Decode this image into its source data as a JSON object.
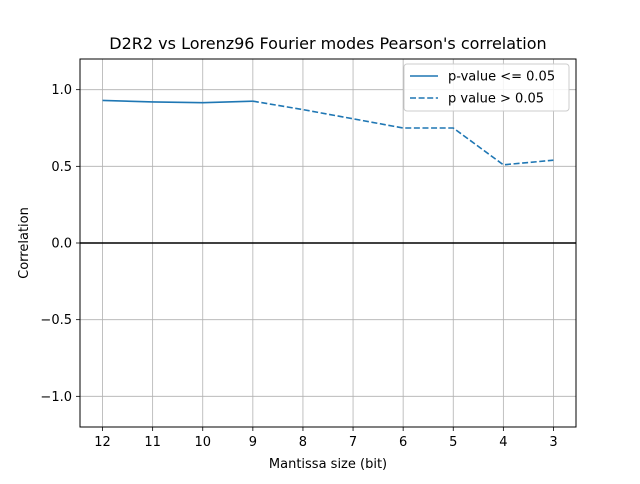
{
  "chart_data": {
    "type": "line",
    "title": "D2R2 vs Lorenz96 Fourier modes Pearson's correlation",
    "xlabel": "Mantissa size (bit)",
    "ylabel": "Correlation",
    "x_categories": [
      "12",
      "11",
      "10",
      "9",
      "8",
      "7",
      "6",
      "5",
      "4",
      "3"
    ],
    "ylim": [
      -1.2,
      1.2
    ],
    "yticks": [
      -1.0,
      -0.5,
      0.0,
      0.5,
      1.0
    ],
    "ytick_labels": [
      "−1.0",
      "−0.5",
      "0.0",
      "0.5",
      "1.0"
    ],
    "grid": true,
    "reference_line": {
      "y": 0.0,
      "color": "#000000"
    },
    "legend_position": "top-right",
    "series_color": "#1f77b4",
    "series": [
      {
        "name": "p-value <= 0.05",
        "style": "solid",
        "x": [
          "12",
          "11",
          "10",
          "9"
        ],
        "y": [
          0.93,
          0.92,
          0.915,
          0.925
        ]
      },
      {
        "name": "p value > 0.05",
        "style": "dashed",
        "x": [
          "9",
          "8",
          "7",
          "6",
          "5",
          "4",
          "3"
        ],
        "y": [
          0.925,
          0.87,
          0.81,
          0.75,
          0.75,
          0.51,
          0.54
        ]
      }
    ]
  }
}
